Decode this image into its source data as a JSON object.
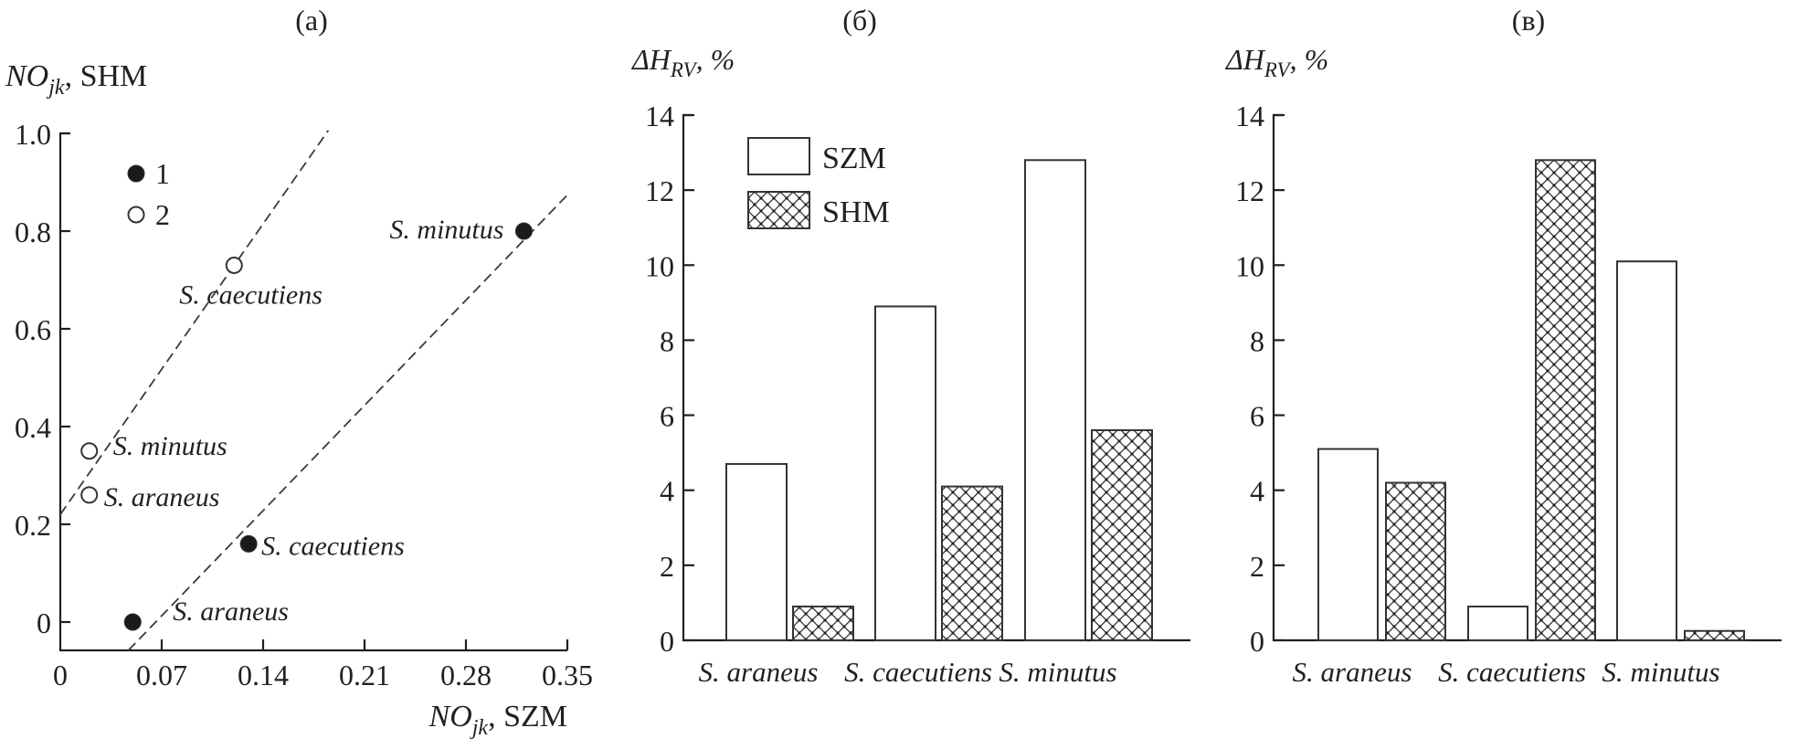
{
  "chart_data": [
    {
      "type": "scatter",
      "panel_label": "(a)",
      "ylabel_main": "NO",
      "ylabel_sub": "jk",
      "ylabel_suffix": ", SHM",
      "xlabel_main": "NO",
      "xlabel_sub": "jk",
      "xlabel_suffix": ", SZM",
      "xlim": [
        0,
        0.35
      ],
      "ylim": [
        -0.06,
        1.0
      ],
      "xticks": [
        0,
        0.07,
        0.14,
        0.21,
        0.28,
        0.35
      ],
      "xtick_labels": [
        "0",
        "0.07",
        "0.14",
        "0.21",
        "0.28",
        "0.35"
      ],
      "yticks": [
        0,
        0.2,
        0.4,
        0.6,
        0.8,
        1.0
      ],
      "ytick_labels": [
        "0",
        "0.2",
        "0.4",
        "0.6",
        "0.8",
        "1.0"
      ],
      "legend": [
        {
          "label": "1",
          "marker": "filled-circle"
        },
        {
          "label": "2",
          "marker": "open-circle"
        }
      ],
      "legend_position": "top-left",
      "series": [
        {
          "name": "1",
          "marker": "filled-circle",
          "points": [
            {
              "label": "S. minutus",
              "x": 0.32,
              "y": 0.8
            },
            {
              "label": "S. caecutiens",
              "x": 0.13,
              "y": 0.16
            },
            {
              "label": "S. araneus",
              "x": 0.05,
              "y": 0.0
            }
          ],
          "trend_line": {
            "style": "dashed",
            "from": [
              0.047,
              -0.058
            ],
            "to": [
              0.351,
              0.877
            ]
          }
        },
        {
          "name": "2",
          "marker": "open-circle",
          "points": [
            {
              "label": "S. caecutiens",
              "x": 0.12,
              "y": 0.73
            },
            {
              "label": "S. minutus",
              "x": 0.02,
              "y": 0.35
            },
            {
              "label": "S. araneus",
              "x": 0.02,
              "y": 0.26
            }
          ],
          "trend_line": {
            "style": "dashed",
            "from": [
              0.0,
              0.22
            ],
            "to": [
              0.185,
              1.006
            ]
          }
        }
      ],
      "grid": false
    },
    {
      "type": "bar",
      "panel_label": "(б)",
      "ylabel_main": "ΔH",
      "ylabel_sub": "RV",
      "ylabel_suffix": ", %",
      "categories": [
        "S. araneus",
        "S. caecutiens",
        "S. minutus"
      ],
      "series": [
        {
          "name": "SZM",
          "pattern": "open",
          "values": [
            4.7,
            8.9,
            12.8
          ]
        },
        {
          "name": "SHM",
          "pattern": "crosshatch",
          "values": [
            0.9,
            4.1,
            5.6
          ]
        }
      ],
      "ylim": [
        0,
        14
      ],
      "yticks": [
        0,
        2,
        4,
        6,
        8,
        10,
        12,
        14
      ],
      "ytick_labels": [
        "0",
        "2",
        "4",
        "6",
        "8",
        "10",
        "12",
        "14"
      ],
      "legend": [
        "SZM",
        "SHM"
      ],
      "legend_position": "top-left",
      "grid": false
    },
    {
      "type": "bar",
      "panel_label": "(в)",
      "ylabel_main": "ΔH",
      "ylabel_sub": "RV",
      "ylabel_suffix": ", %",
      "categories": [
        "S. araneus",
        "S. caecutiens",
        "S. minutus"
      ],
      "series": [
        {
          "name": "SZM",
          "pattern": "open",
          "values": [
            5.1,
            0.9,
            10.1
          ]
        },
        {
          "name": "SHM",
          "pattern": "crosshatch",
          "values": [
            4.2,
            12.8,
            0.25
          ]
        }
      ],
      "ylim": [
        0,
        14
      ],
      "yticks": [
        0,
        2,
        4,
        6,
        8,
        10,
        12,
        14
      ],
      "ytick_labels": [
        "0",
        "2",
        "4",
        "6",
        "8",
        "10",
        "12",
        "14"
      ],
      "grid": false
    }
  ]
}
